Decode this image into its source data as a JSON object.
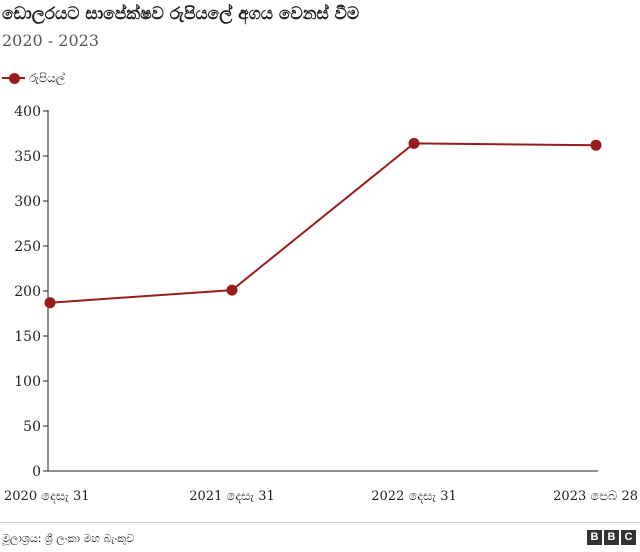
{
  "title": "ඩොලරයට සාපේක්ෂව රුපියලේ අගය වෙනස් වීම",
  "subtitle": "2020 - 2023",
  "source": "මූලාශ්‍රය: ශ්‍රී ලංකා මහ බැංකුව",
  "brand": [
    "B",
    "B",
    "C"
  ],
  "colors": {
    "series": "#9b1c1c",
    "axis": "#222222",
    "grid": "#cccccc"
  },
  "chart_data": {
    "type": "line",
    "title": "ඩොලරයට සාපේක්ෂව රුපියලේ අගය වෙනස් වීම",
    "subtitle": "2020 - 2023",
    "categories": [
      "2020 දෙසැ 31",
      "2021 දෙසැ 31",
      "2022 දෙසැ 31",
      "2023 පෙබ 28"
    ],
    "series": [
      {
        "name": "රුපියල්",
        "values": [
          187,
          201,
          364,
          362
        ]
      }
    ],
    "ylim": [
      0,
      400
    ],
    "yticks": [
      0,
      50,
      100,
      150,
      200,
      250,
      300,
      350,
      400
    ],
    "grid": false,
    "legend": "top-left",
    "markers": true
  }
}
